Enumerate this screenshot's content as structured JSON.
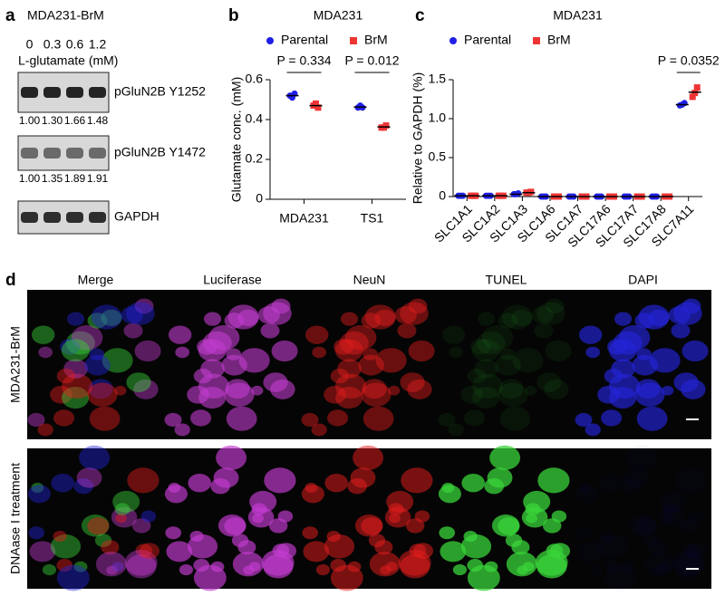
{
  "panel_labels": [
    "a",
    "b",
    "c",
    "d"
  ],
  "blot": {
    "title": "MDA231-BrM",
    "concentrations": [
      "0",
      "0.3",
      "0.6",
      "1.2"
    ],
    "concentration_label": "L-glutamate (mM)",
    "rows": [
      {
        "label": "pGluN2B Y1252",
        "quantities": [
          "1.00",
          "1.30",
          "1.66",
          "1.48"
        ]
      },
      {
        "label": "pGluN2B Y1472",
        "quantities": [
          "1.00",
          "1.35",
          "1.89",
          "1.91"
        ]
      },
      {
        "label": "GAPDH"
      }
    ]
  },
  "chart_data": [
    {
      "type": "strip",
      "title": "MDA231",
      "ylabel": "Glutamate conc. (mM)",
      "categories": [
        "MDA231",
        "TS1"
      ],
      "series": [
        {
          "name": "Parental",
          "color": "#1f1fe6",
          "marker": "circle",
          "values": [
            [
              0.52,
              0.51,
              0.53
            ],
            [
              0.46,
              0.47,
              0.46
            ]
          ],
          "means": [
            0.52,
            0.463
          ]
        },
        {
          "name": "BrM",
          "color": "#ee3535",
          "marker": "square",
          "values": [
            [
              0.47,
              0.48,
              0.46
            ],
            [
              0.36,
              0.36,
              0.37
            ]
          ],
          "means": [
            0.47,
            0.363
          ]
        }
      ],
      "ylim": [
        0,
        0.6
      ],
      "yticks": [
        0,
        0.2,
        0.4,
        0.6
      ],
      "annotations": [
        "P = 0.334",
        "P = 0.012"
      ]
    },
    {
      "type": "strip",
      "title": "MDA231",
      "ylabel": "Relative to GAPDH (%)",
      "categories": [
        "SLC1A1",
        "SLC1A2",
        "SLC1A3",
        "SLC1A6",
        "SLC1A7",
        "SLC17A6",
        "SLC17A7",
        "SLC17A8",
        "SLC7A11"
      ],
      "series": [
        {
          "name": "Parental",
          "color": "#1f1fe6",
          "marker": "circle",
          "values": [
            [
              0.01,
              0.01,
              0.01
            ],
            [
              0.01,
              0.01,
              0.01
            ],
            [
              0.03,
              0.03,
              0.04
            ],
            [
              0,
              0,
              0
            ],
            [
              0,
              0,
              0
            ],
            [
              0,
              0,
              0
            ],
            [
              0,
              0,
              0
            ],
            [
              0,
              0,
              0
            ],
            [
              1.17,
              1.18,
              1.2
            ]
          ],
          "means": [
            0.01,
            0.01,
            0.03,
            0,
            0,
            0,
            0,
            0,
            1.18
          ]
        },
        {
          "name": "BrM",
          "color": "#ee3535",
          "marker": "square",
          "values": [
            [
              0.01,
              0.01,
              0.01
            ],
            [
              0.01,
              0.01,
              0.01
            ],
            [
              0.05,
              0.05,
              0.06
            ],
            [
              0,
              0,
              0
            ],
            [
              0,
              0,
              0
            ],
            [
              0,
              0,
              0
            ],
            [
              0,
              0,
              0
            ],
            [
              0,
              0,
              0
            ],
            [
              1.28,
              1.33,
              1.4
            ]
          ],
          "means": [
            0.01,
            0.01,
            0.05,
            0,
            0,
            0,
            0,
            0,
            1.34
          ]
        }
      ],
      "ylim": [
        0,
        1.5
      ],
      "yticks": [
        0,
        0.5,
        {
          "value": 1,
          "label": "1.0"
        },
        1.5
      ],
      "annotations": [
        "P = 0.0352"
      ]
    }
  ],
  "microscopy": {
    "columns": [
      {
        "label": "Merge",
        "color": "#000000"
      },
      {
        "label": "Luciferase",
        "color": "#c23ccf"
      },
      {
        "label": "NeuN",
        "color": "#e51c1c"
      },
      {
        "label": "TUNEL",
        "color": "#3ad43a"
      },
      {
        "label": "DAPI",
        "color": "#2424d6"
      }
    ],
    "rows": [
      "MDA231-BrM",
      "DNAase I treatment"
    ]
  }
}
